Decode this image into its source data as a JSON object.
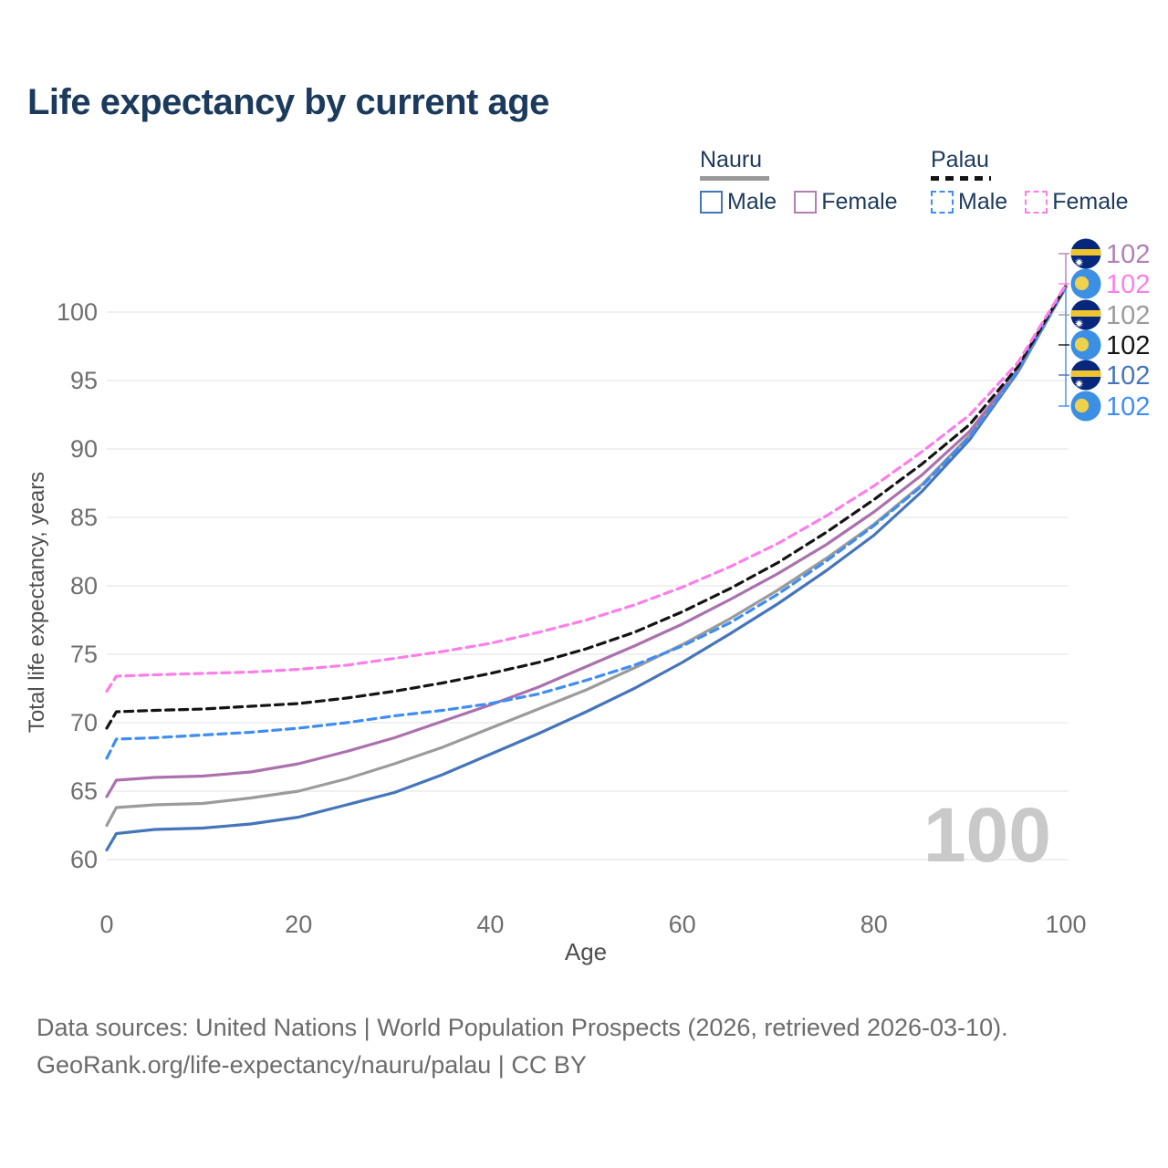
{
  "page": {
    "title": "Life expectancy by current age",
    "background": "#ffffff"
  },
  "legend": {
    "groups": [
      {
        "country": "Nauru",
        "underline_style": "solid",
        "underline_color": "#999999",
        "items": [
          {
            "label": "Male",
            "color": "#4575b9",
            "dashed": false
          },
          {
            "label": "Female",
            "color": "#b47db4",
            "dashed": false
          }
        ]
      },
      {
        "country": "Palau",
        "underline_style": "dashed",
        "underline_color": "#141414",
        "items": [
          {
            "label": "Male",
            "color": "#3f8df2",
            "dashed": true
          },
          {
            "label": "Female",
            "color": "#fc7ee8",
            "dashed": true
          }
        ]
      }
    ]
  },
  "chart_data": {
    "type": "line",
    "title": "Life expectancy by current age",
    "xlabel": "Age",
    "ylabel": "Total life expectancy, years",
    "x_ticks": [
      0,
      20,
      40,
      60,
      80,
      100
    ],
    "y_ticks": [
      60,
      65,
      70,
      75,
      80,
      85,
      90,
      95,
      100
    ],
    "xlim": [
      0,
      100
    ],
    "ylim": [
      60,
      103
    ],
    "grid": "horizontal",
    "watermark": "100",
    "ages": [
      0,
      1,
      5,
      10,
      15,
      20,
      25,
      30,
      35,
      40,
      45,
      50,
      55,
      60,
      65,
      70,
      75,
      80,
      85,
      90,
      95,
      100
    ],
    "series": [
      {
        "name": "Nauru Male",
        "country": "Nauru",
        "sex": "Male",
        "color": "#4575b9",
        "dashed": false,
        "values": [
          60.7,
          61.9,
          62.2,
          62.3,
          62.6,
          63.1,
          64.0,
          64.9,
          66.2,
          67.7,
          69.2,
          70.8,
          72.5,
          74.4,
          76.5,
          78.7,
          81.1,
          83.7,
          86.9,
          90.7,
          95.6,
          101.8
        ]
      },
      {
        "name": "Nauru All",
        "country": "Nauru",
        "sex": "All",
        "color": "#9b9b9b",
        "dashed": false,
        "values": [
          62.5,
          63.8,
          64.0,
          64.1,
          64.5,
          65.0,
          65.9,
          67.0,
          68.2,
          69.6,
          71.0,
          72.4,
          74.0,
          75.7,
          77.6,
          79.7,
          82.0,
          84.5,
          87.4,
          91.0,
          95.7,
          101.8
        ]
      },
      {
        "name": "Nauru Female",
        "country": "Nauru",
        "sex": "Female",
        "color": "#ab71ad",
        "dashed": false,
        "values": [
          64.6,
          65.8,
          66.0,
          66.1,
          66.4,
          67.0,
          67.9,
          68.9,
          70.1,
          71.3,
          72.6,
          74.1,
          75.6,
          77.2,
          79.0,
          80.9,
          83.0,
          85.4,
          88.1,
          91.3,
          95.8,
          101.9
        ]
      },
      {
        "name": "Palau Male",
        "country": "Palau",
        "sex": "Male",
        "color": "#3f8df2",
        "dashed": true,
        "values": [
          67.4,
          68.8,
          68.9,
          69.1,
          69.3,
          69.6,
          70.0,
          70.5,
          70.9,
          71.4,
          72.1,
          73.1,
          74.2,
          75.6,
          77.3,
          79.4,
          81.8,
          84.4,
          87.3,
          90.9,
          95.7,
          101.8
        ]
      },
      {
        "name": "Palau All",
        "country": "Palau",
        "sex": "All",
        "color": "#141414",
        "dashed": true,
        "values": [
          69.6,
          70.8,
          70.9,
          71.0,
          71.2,
          71.4,
          71.8,
          72.3,
          72.9,
          73.6,
          74.4,
          75.4,
          76.6,
          78.1,
          79.8,
          81.7,
          83.9,
          86.3,
          88.9,
          91.8,
          96.0,
          101.9
        ]
      },
      {
        "name": "Palau Female",
        "country": "Palau",
        "sex": "Female",
        "color": "#fc7ee8",
        "dashed": true,
        "values": [
          72.3,
          73.4,
          73.5,
          73.6,
          73.7,
          73.9,
          74.2,
          74.7,
          75.2,
          75.8,
          76.6,
          77.5,
          78.6,
          79.9,
          81.4,
          83.1,
          85.1,
          87.3,
          89.8,
          92.5,
          96.3,
          102.0
        ]
      }
    ],
    "end_labels": [
      {
        "series": "Nauru Female",
        "flag": "nauru",
        "value": "102",
        "color": "#b27fb5"
      },
      {
        "series": "Palau Female",
        "flag": "palau",
        "value": "102",
        "color": "#fc7ee8"
      },
      {
        "series": "Nauru All",
        "flag": "nauru",
        "value": "102",
        "color": "#9b9b9b"
      },
      {
        "series": "Palau All",
        "flag": "palau",
        "value": "102",
        "color": "#141414"
      },
      {
        "series": "Nauru Male",
        "flag": "nauru",
        "value": "102",
        "color": "#4575b9"
      },
      {
        "series": "Palau Male",
        "flag": "palau",
        "value": "102",
        "color": "#3f8df2"
      }
    ],
    "flag_colors": {
      "nauru": {
        "bg": "#07277d",
        "stripe": "#eec52f",
        "star": "#ffffff"
      },
      "palau": {
        "bg": "#3b8fe4",
        "disc": "#efd24c"
      }
    }
  },
  "footer": {
    "line1": "Data sources: United Nations | World Population Prospects (2026, retrieved 2026-03-10).",
    "line2": "GeoRank.org/life-expectancy/nauru/palau | CC BY"
  }
}
